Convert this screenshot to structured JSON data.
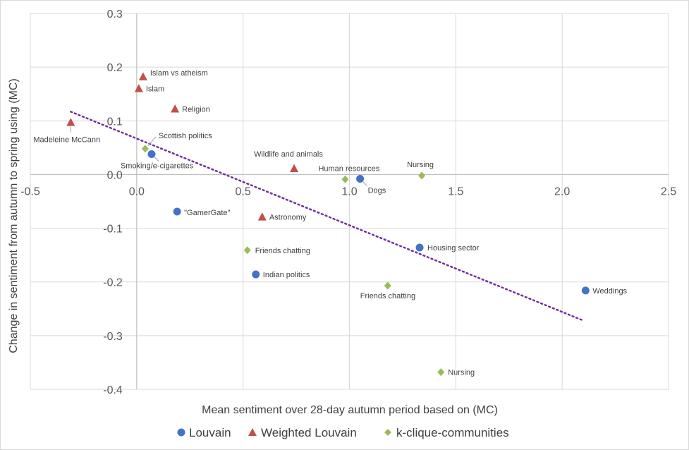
{
  "chart_data": {
    "type": "scatter",
    "title": "",
    "xlabel": "Mean sentiment over 28-day autumn period based on (MC)",
    "ylabel": "Change in sentiment from autumn to spring using (MC)",
    "xlim": [
      -0.5,
      2.5
    ],
    "ylim": [
      -0.4,
      0.3
    ],
    "xticks": [
      "-0.5",
      "0.0",
      "0.5",
      "1.0",
      "1.5",
      "2.0",
      "2.5"
    ],
    "xtick_values": [
      -0.5,
      0,
      0.5,
      1.0,
      1.5,
      2.0,
      2.5
    ],
    "yticks": [
      "0.3",
      "0.2",
      "0.1",
      "0.0",
      "-0.1",
      "-0.2",
      "-0.3",
      "-0.4"
    ],
    "ytick_values": [
      0.3,
      0.2,
      0.1,
      0.0,
      -0.1,
      -0.2,
      -0.3,
      -0.4
    ],
    "grid": true,
    "legend_position": "bottom",
    "series": [
      {
        "name": "Louvain",
        "marker": "circle",
        "color": "#4472c4",
        "points": [
          {
            "x": 0.07,
            "y": 0.038,
            "label": "Smoking/e-cigarettes"
          },
          {
            "x": 0.19,
            "y": -0.069,
            "label": "\"GamerGate\""
          },
          {
            "x": 0.56,
            "y": -0.186,
            "label": "Indian politics"
          },
          {
            "x": 1.05,
            "y": -0.008,
            "label": "Dogs"
          },
          {
            "x": 1.33,
            "y": -0.136,
            "label": "Housing sector"
          },
          {
            "x": 2.11,
            "y": -0.216,
            "label": "Weddings"
          }
        ]
      },
      {
        "name": "Weighted Louvain",
        "marker": "triangle",
        "color": "#c0504d",
        "points": [
          {
            "x": 0.03,
            "y": 0.182,
            "label": "Islam vs atheism"
          },
          {
            "x": 0.01,
            "y": 0.16,
            "label": "Islam"
          },
          {
            "x": 0.18,
            "y": 0.122,
            "label": "Religion"
          },
          {
            "x": -0.31,
            "y": 0.097,
            "label": "Madeleine McCann"
          },
          {
            "x": 0.74,
            "y": 0.011,
            "label": "Wildlife and animals"
          },
          {
            "x": 0.59,
            "y": -0.079,
            "label": "Astronomy"
          }
        ]
      },
      {
        "name": "k-clique-communities",
        "marker": "diamond",
        "color": "#9bbb59",
        "points": [
          {
            "x": 0.04,
            "y": 0.048,
            "label": "Scottish politics"
          },
          {
            "x": 0.98,
            "y": -0.009,
            "label": "Human resources"
          },
          {
            "x": 1.34,
            "y": -0.002,
            "label": "Nursing"
          },
          {
            "x": 0.52,
            "y": -0.141,
            "label": "Friends chatting"
          },
          {
            "x": 1.18,
            "y": -0.207,
            "label": "Friends chatting"
          },
          {
            "x": 1.43,
            "y": -0.368,
            "label": "Nursing"
          }
        ]
      }
    ],
    "trendline": {
      "style": "dotted",
      "color": "#7030a0",
      "x": [
        -0.31,
        2.1
      ],
      "y": [
        0.117,
        -0.272
      ]
    }
  },
  "legend": {
    "louvain": "Louvain",
    "weighted_louvain": "Weighted Louvain",
    "kclique": "k-clique-communities"
  }
}
